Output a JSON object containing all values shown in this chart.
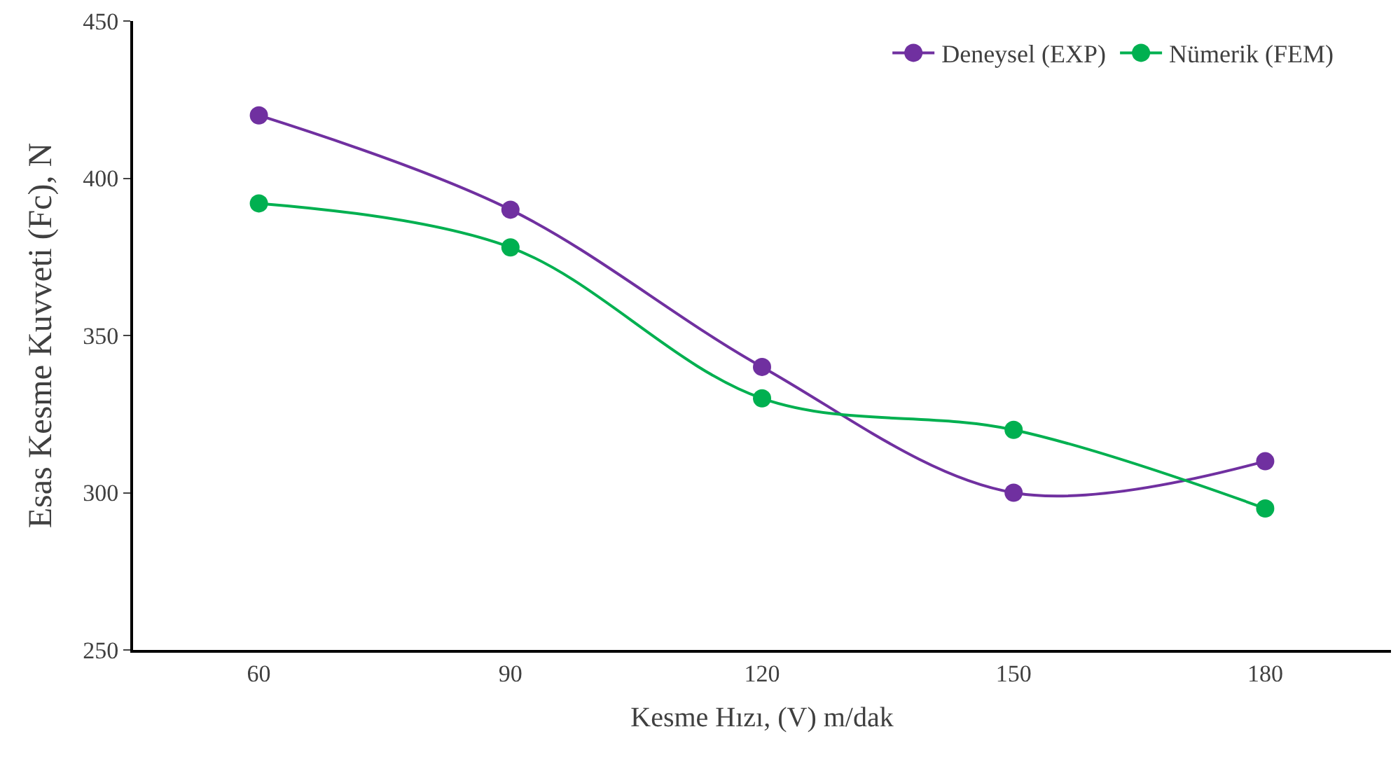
{
  "chart_data": {
    "type": "line",
    "xlabel": "Kesme Hızı, (V) m/dak",
    "ylabel": "Esas Kesme Kuvveti (Fc), N",
    "x": [
      60,
      90,
      120,
      150,
      180
    ],
    "xlim": [
      45,
      195
    ],
    "xticks": [
      60,
      90,
      120,
      150,
      180
    ],
    "ylim": [
      250,
      450
    ],
    "yticks": [
      250,
      300,
      350,
      400,
      450
    ],
    "series": [
      {
        "name": "Deneysel (EXP)",
        "color": "#7030a0",
        "values": [
          420,
          390,
          340,
          300,
          310
        ]
      },
      {
        "name": "Nümerik (FEM)",
        "color": "#00b050",
        "values": [
          392,
          378,
          330,
          320,
          295
        ]
      }
    ],
    "marker": "circle",
    "line_style": "solid",
    "legend": "top right"
  }
}
